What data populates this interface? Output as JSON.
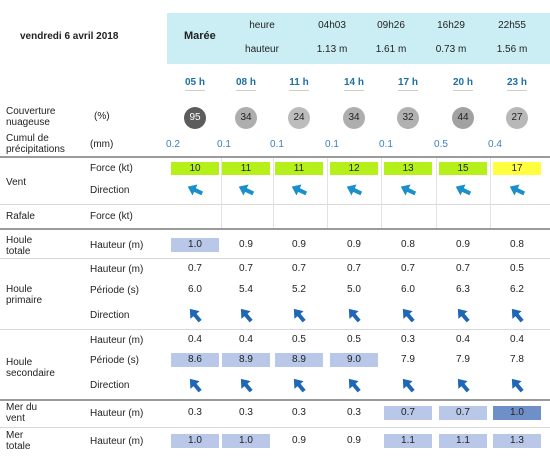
{
  "date": "vendredi 6 avril 2018",
  "tide": {
    "label": "Marée",
    "heure_label": "heure",
    "hauteur_label": "hauteur",
    "times": [
      "04h03",
      "09h26",
      "16h29",
      "22h55"
    ],
    "heights": [
      "1.13 m",
      "1.61 m",
      "0.73 m",
      "1.56 m"
    ]
  },
  "hours": [
    "05 h",
    "08 h",
    "11 h",
    "14 h",
    "17 h",
    "20 h",
    "23 h"
  ],
  "cloud": {
    "label_line1": "Couverture",
    "label_line2": "nuageuse",
    "unit": "(%)",
    "values": [
      "95",
      "34",
      "24",
      "34",
      "32",
      "44",
      "27"
    ]
  },
  "precip": {
    "label_line1": "Cumul de",
    "label_line2": "précipitations",
    "unit": "(mm)",
    "values": [
      "0.2",
      "0.1",
      "0.1",
      "0.1",
      "0.1",
      "0.5",
      "0.4"
    ]
  },
  "vent": {
    "label": "Vent",
    "force_label": "Force (kt)",
    "direction_label": "Direction",
    "force": [
      "10",
      "11",
      "11",
      "12",
      "13",
      "15",
      "17"
    ],
    "colors": [
      "#b6f01a",
      "#b6f01a",
      "#b6f01a",
      "#b6f01a",
      "#b6f01a",
      "#b6f01a",
      "#ffff40"
    ],
    "direction_icon": "wind-arrow-icon"
  },
  "rafale": {
    "label": "Rafale",
    "force_label": "Force (kt)"
  },
  "houle_totale": {
    "label_line1": "Houle",
    "label_line2": "totale",
    "hauteur_label": "Hauteur (m)",
    "values": [
      "1.0",
      "0.9",
      "0.9",
      "0.9",
      "0.8",
      "0.9",
      "0.8"
    ]
  },
  "houle_primaire": {
    "label_line1": "Houle",
    "label_line2": "primaire",
    "hauteur_label": "Hauteur (m)",
    "periode_label": "Période (s)",
    "direction_label": "Direction",
    "hauteur": [
      "0.7",
      "0.7",
      "0.7",
      "0.7",
      "0.7",
      "0.7",
      "0.5"
    ],
    "periode": [
      "6.0",
      "5.4",
      "5.2",
      "5.0",
      "6.0",
      "6.3",
      "6.2"
    ],
    "direction_icon": "swell-arrow-icon"
  },
  "houle_secondaire": {
    "label_line1": "Houle",
    "label_line2": "secondaire",
    "hauteur_label": "Hauteur (m)",
    "periode_label": "Période (s)",
    "direction_label": "Direction",
    "hauteur": [
      "0.4",
      "0.4",
      "0.5",
      "0.5",
      "0.3",
      "0.4",
      "0.4"
    ],
    "periode": [
      "8.6",
      "8.9",
      "8.9",
      "9.0",
      "7.9",
      "7.9",
      "7.8"
    ],
    "direction_icon": "swell-arrow-icon"
  },
  "mer_du_vent": {
    "label_line1": "Mer du",
    "label_line2": "vent",
    "hauteur_label": "Hauteur (m)",
    "values": [
      "0.3",
      "0.3",
      "0.3",
      "0.3",
      "0.7",
      "0.7",
      "1.0"
    ]
  },
  "mer_totale": {
    "label_line1": "Mer",
    "label_line2": "totale",
    "hauteur_label": "Hauteur (m)",
    "values": [
      "1.0",
      "1.0",
      "0.9",
      "0.9",
      "1.1",
      "1.1",
      "1.3"
    ]
  },
  "highlight_colors": {
    "light": "#b9c7e8",
    "dark": "#6f8fc8"
  },
  "arrow_colors": {
    "wind": "#1a8fc9",
    "swell": "#1f67b5"
  }
}
